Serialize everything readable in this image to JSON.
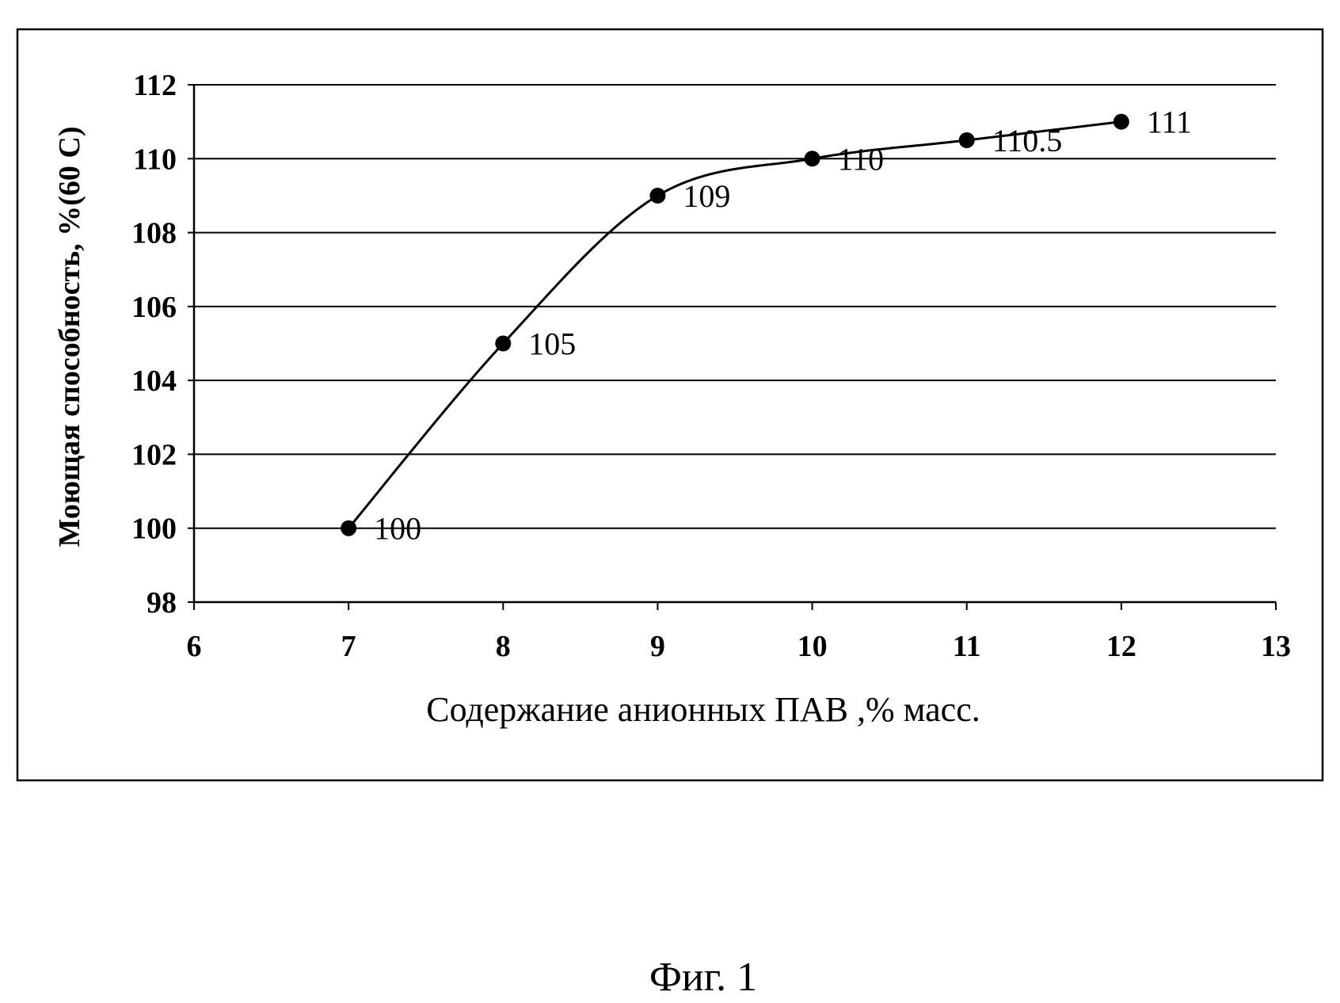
{
  "chart_data": {
    "type": "line",
    "x_label": "Содержание анионных ПАВ ,% масс.",
    "y_label": "Моющая способность, %(60 С)",
    "caption": "Фиг. 1",
    "x": [
      7,
      8,
      9,
      10,
      11,
      12
    ],
    "series": [
      {
        "name": "Моющая способность",
        "color": "#000000",
        "values": [
          100,
          105,
          109,
          110,
          110.5,
          111
        ]
      }
    ],
    "xlim": [
      6,
      13
    ],
    "xticks": [
      6,
      7,
      8,
      9,
      10,
      11,
      12,
      13
    ],
    "ylim": [
      98,
      112
    ],
    "yticks": [
      98,
      100,
      102,
      104,
      106,
      108,
      110,
      112
    ],
    "grid": true,
    "legend": false
  }
}
